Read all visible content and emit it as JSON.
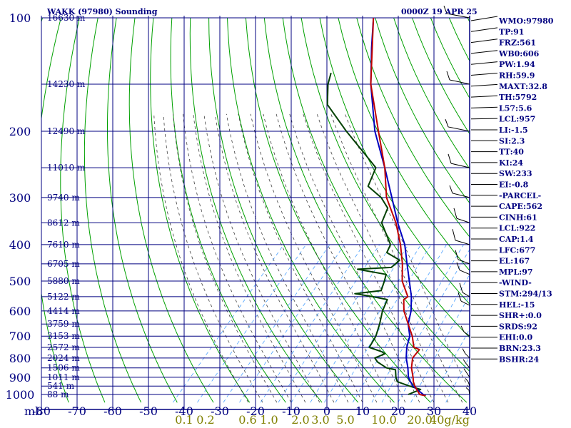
{
  "header": {
    "station": "WAKK (97980) Sounding",
    "time": "0000Z 19 APR 25"
  },
  "colors": {
    "grid": "#000080",
    "dry_adiabat": "#00a000",
    "moist_adiabat": "#404040",
    "mixing_ratio": "#4aa0ff",
    "temperature": "#c00000",
    "dewpoint": "#004000",
    "parcel": "#0000c0",
    "wind": "#000000",
    "mixing_label": "#808000"
  },
  "chart_data": {
    "type": "line",
    "title": "WAKK (97980) Sounding",
    "subtitle": "0000Z 19 APR 25",
    "x_axis_label": "",
    "y_axis_label": "mb",
    "pressure_ticks": [
      100,
      200,
      300,
      400,
      500,
      600,
      700,
      800,
      900,
      1000
    ],
    "temperature_ticks": [
      -80,
      -70,
      -60,
      -50,
      -40,
      -30,
      -20,
      -10,
      0,
      10,
      20,
      30,
      40
    ],
    "temperature_tick_labels": [
      "-80",
      "-70",
      "-60",
      "-50",
      "-40",
      "-30",
      "-20",
      "-10",
      "0",
      "10",
      "20",
      "30",
      "40"
    ],
    "xlim": [
      -80,
      40
    ],
    "ylim": [
      100,
      1050
    ],
    "y_scale": "log",
    "height_levels": [
      {
        "p": 100,
        "label": "16630 m"
      },
      {
        "p": 150,
        "label": "14230 m"
      },
      {
        "p": 200,
        "label": "12490 m"
      },
      {
        "p": 250,
        "label": "11010 m"
      },
      {
        "p": 300,
        "label": "9740 m"
      },
      {
        "p": 350,
        "label": "8612 m"
      },
      {
        "p": 400,
        "label": "7610 m"
      },
      {
        "p": 450,
        "label": "6705 m"
      },
      {
        "p": 500,
        "label": "5880 m"
      },
      {
        "p": 550,
        "label": "5122 m"
      },
      {
        "p": 600,
        "label": "4414 m"
      },
      {
        "p": 650,
        "label": "3759 m"
      },
      {
        "p": 700,
        "label": "3153 m"
      },
      {
        "p": 750,
        "label": "2572 m"
      },
      {
        "p": 800,
        "label": "2024 m"
      },
      {
        "p": 850,
        "label": "1506 m"
      },
      {
        "p": 900,
        "label": "1011 m"
      },
      {
        "p": 950,
        "label": "541 m"
      },
      {
        "p": 1000,
        "label": "88 m"
      }
    ],
    "mixing_ratio_labels": [
      {
        "w": 0.1,
        "label": "0.1"
      },
      {
        "w": 0.2,
        "label": "0.2"
      },
      {
        "w": 0.6,
        "label": "0.6"
      },
      {
        "w": 1.0,
        "label": "1.0"
      },
      {
        "w": 2.0,
        "label": "2.0"
      },
      {
        "w": 3.0,
        "label": "3.0"
      },
      {
        "w": 5.0,
        "label": "5.0"
      },
      {
        "w": 10.0,
        "label": "10.0"
      },
      {
        "w": 20.0,
        "label": "20.0"
      },
      {
        "w": 40.0,
        "label": "40g/kg"
      }
    ],
    "series": [
      {
        "key": "temperature",
        "points": [
          {
            "p": 1008,
            "t": 28.0
          },
          {
            "p": 1000,
            "t": 26.0
          },
          {
            "p": 950,
            "t": 22.5
          },
          {
            "p": 925,
            "t": 21.0
          },
          {
            "p": 900,
            "t": 19.8
          },
          {
            "p": 850,
            "t": 17.0
          },
          {
            "p": 800,
            "t": 14.8
          },
          {
            "p": 760,
            "t": 14.6
          },
          {
            "p": 750,
            "t": 12.5
          },
          {
            "p": 700,
            "t": 9.2
          },
          {
            "p": 650,
            "t": 5.0
          },
          {
            "p": 600,
            "t": 0.5
          },
          {
            "p": 560,
            "t": -2.4
          },
          {
            "p": 550,
            "t": -2.0
          },
          {
            "p": 500,
            "t": -7.5
          },
          {
            "p": 450,
            "t": -11.8
          },
          {
            "p": 400,
            "t": -17.2
          },
          {
            "p": 350,
            "t": -24.0
          },
          {
            "p": 300,
            "t": -33.0
          },
          {
            "p": 250,
            "t": -41.0
          },
          {
            "p": 200,
            "t": -52.0
          },
          {
            "p": 150,
            "t": -66.0
          },
          {
            "p": 100,
            "t": -82.0
          }
        ]
      },
      {
        "key": "dewpoint",
        "points": [
          {
            "p": 1000,
            "t": 22.8
          },
          {
            "p": 990,
            "t": 23.5
          },
          {
            "p": 970,
            "t": 25.0
          },
          {
            "p": 950,
            "t": 21.0
          },
          {
            "p": 925,
            "t": 16.5
          },
          {
            "p": 900,
            "t": 15.0
          },
          {
            "p": 860,
            "t": 13.0
          },
          {
            "p": 850,
            "t": 10.0
          },
          {
            "p": 820,
            "t": 6.0
          },
          {
            "p": 800,
            "t": 4.2
          },
          {
            "p": 780,
            "t": 6.0
          },
          {
            "p": 770,
            "t": 4.6
          },
          {
            "p": 750,
            "t": 0.0
          },
          {
            "p": 700,
            "t": -1.0
          },
          {
            "p": 650,
            "t": -3.0
          },
          {
            "p": 600,
            "t": -5.5
          },
          {
            "p": 560,
            "t": -7.0
          },
          {
            "p": 550,
            "t": -11.8
          },
          {
            "p": 540,
            "t": -17.6
          },
          {
            "p": 530,
            "t": -11.0
          },
          {
            "p": 500,
            "t": -12.5
          },
          {
            "p": 480,
            "t": -13.7
          },
          {
            "p": 465,
            "t": -23.0
          },
          {
            "p": 460,
            "t": -14.0
          },
          {
            "p": 440,
            "t": -13.5
          },
          {
            "p": 420,
            "t": -19.0
          },
          {
            "p": 400,
            "t": -20.0
          },
          {
            "p": 350,
            "t": -28.0
          },
          {
            "p": 320,
            "t": -30.0
          },
          {
            "p": 300,
            "t": -34.5
          },
          {
            "p": 280,
            "t": -41.0
          },
          {
            "p": 250,
            "t": -43.5
          },
          {
            "p": 230,
            "t": -50.0
          },
          {
            "p": 200,
            "t": -61.0
          },
          {
            "p": 170,
            "t": -73.0
          },
          {
            "p": 150,
            "t": -78.0
          },
          {
            "p": 140,
            "t": -80.0
          }
        ]
      },
      {
        "key": "parcel",
        "points": [
          {
            "p": 1008,
            "t": 28.0
          },
          {
            "p": 1000,
            "t": 27.0
          },
          {
            "p": 950,
            "t": 22.0
          },
          {
            "p": 922,
            "t": 20.0
          },
          {
            "p": 900,
            "t": 18.5
          },
          {
            "p": 850,
            "t": 16.0
          },
          {
            "p": 800,
            "t": 13.0
          },
          {
            "p": 750,
            "t": 10.5
          },
          {
            "p": 700,
            "t": 8.5
          },
          {
            "p": 650,
            "t": 5.0
          },
          {
            "p": 600,
            "t": 2.5
          },
          {
            "p": 550,
            "t": -1.0
          },
          {
            "p": 500,
            "t": -5.5
          },
          {
            "p": 450,
            "t": -10.5
          },
          {
            "p": 400,
            "t": -16.0
          },
          {
            "p": 350,
            "t": -23.5
          },
          {
            "p": 300,
            "t": -31.5
          },
          {
            "p": 250,
            "t": -41.0
          },
          {
            "p": 200,
            "t": -53.0
          },
          {
            "p": 150,
            "t": -66.0
          },
          {
            "p": 120,
            "t": -75.0
          },
          {
            "p": 100,
            "t": -82.0
          }
        ]
      }
    ]
  },
  "indices": [
    "WMO:97980",
    "TP:91",
    "FRZ:561",
    "WB0:606",
    "PW:1.94",
    "RH:59.9",
    "MAXT:32.8",
    "TH:5792",
    "L57:5.6",
    "LCL:957",
    "LI:-1.5",
    "SI:2.3",
    "TT:40",
    "KI:24",
    "SW:233",
    "EI:-0.8",
    "-PARCEL-",
    "CAPE:562",
    "CINH:61",
    "LCL:922",
    "CAP:1.4",
    "LFC:677",
    "EL:167",
    "MPL:97",
    "-WIND-",
    "STM:294/13",
    "HEL:-15",
    "SHR+:0.0",
    "SRDS:92",
    "EHI:0.0",
    "BRN:23.3",
    "BSHR:24"
  ]
}
